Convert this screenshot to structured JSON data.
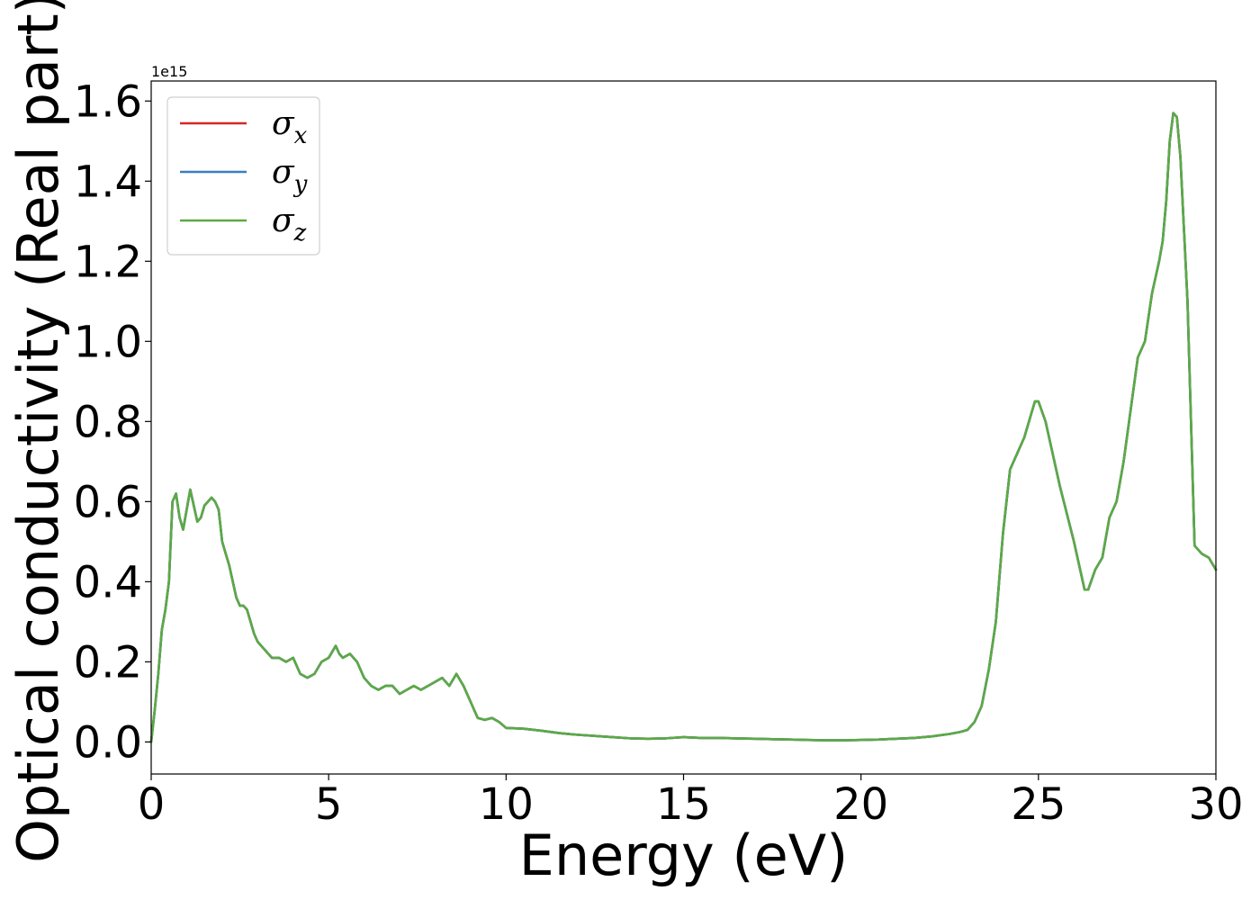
{
  "chart_data": {
    "type": "line",
    "title": "",
    "xlabel": "Energy (eV)",
    "ylabel": "Optical conductivity (Real part)",
    "y_offset_text": "1e15",
    "y_scale": 1000000000000000.0,
    "xlim": [
      0,
      30
    ],
    "ylim": [
      -0.08,
      1.65
    ],
    "xticks": [
      0,
      5,
      10,
      15,
      20,
      25,
      30
    ],
    "xtick_labels": [
      "0",
      "5",
      "10",
      "15",
      "20",
      "25",
      "30"
    ],
    "yticks": [
      0.0,
      0.2,
      0.4,
      0.6,
      0.8,
      1.0,
      1.2,
      1.4,
      1.6
    ],
    "ytick_labels": [
      "0.0",
      "0.2",
      "0.4",
      "0.6",
      "0.8",
      "1.0",
      "1.2",
      "1.4",
      "1.6"
    ],
    "grid": false,
    "legend": {
      "position": "top-left",
      "entries": [
        {
          "symbol": "σ",
          "sub": "x",
          "color": "#d62728"
        },
        {
          "symbol": "σ",
          "sub": "y",
          "color": "#3a7ebf"
        },
        {
          "symbol": "σ",
          "sub": "z",
          "color": "#5aaa46"
        }
      ]
    },
    "x": [
      0,
      0.1,
      0.2,
      0.3,
      0.4,
      0.5,
      0.6,
      0.7,
      0.8,
      0.9,
      1.0,
      1.1,
      1.2,
      1.3,
      1.4,
      1.5,
      1.6,
      1.7,
      1.8,
      1.9,
      2.0,
      2.1,
      2.2,
      2.3,
      2.4,
      2.5,
      2.6,
      2.7,
      2.8,
      2.9,
      3.0,
      3.2,
      3.4,
      3.6,
      3.8,
      4.0,
      4.2,
      4.4,
      4.6,
      4.8,
      5.0,
      5.2,
      5.3,
      5.4,
      5.6,
      5.8,
      6.0,
      6.2,
      6.4,
      6.6,
      6.8,
      7.0,
      7.2,
      7.4,
      7.6,
      7.8,
      8.0,
      8.2,
      8.4,
      8.6,
      8.8,
      9.0,
      9.2,
      9.4,
      9.6,
      9.8,
      10.0,
      10.5,
      11.0,
      11.5,
      12.0,
      12.5,
      13.0,
      13.5,
      14.0,
      14.5,
      15.0,
      15.5,
      16.0,
      16.5,
      17.0,
      17.5,
      18.0,
      18.5,
      19.0,
      19.5,
      20.0,
      20.5,
      21.0,
      21.5,
      22.0,
      22.5,
      22.8,
      23.0,
      23.2,
      23.4,
      23.6,
      23.8,
      24.0,
      24.2,
      24.4,
      24.6,
      24.8,
      24.9,
      25.0,
      25.2,
      25.4,
      25.6,
      25.8,
      26.0,
      26.2,
      26.3,
      26.4,
      26.6,
      26.8,
      27.0,
      27.2,
      27.4,
      27.6,
      27.8,
      28.0,
      28.2,
      28.4,
      28.5,
      28.6,
      28.7,
      28.8,
      28.9,
      29.0,
      29.2,
      29.4,
      29.6,
      29.8,
      30.0
    ],
    "series": [
      {
        "name": "σx",
        "color": "#d62728",
        "values": [
          0.0,
          0.08,
          0.17,
          0.28,
          0.33,
          0.4,
          0.6,
          0.62,
          0.56,
          0.53,
          0.58,
          0.63,
          0.59,
          0.55,
          0.56,
          0.59,
          0.6,
          0.61,
          0.6,
          0.58,
          0.5,
          0.47,
          0.44,
          0.4,
          0.36,
          0.34,
          0.34,
          0.33,
          0.3,
          0.27,
          0.25,
          0.23,
          0.21,
          0.21,
          0.2,
          0.21,
          0.17,
          0.16,
          0.17,
          0.2,
          0.21,
          0.24,
          0.22,
          0.21,
          0.22,
          0.2,
          0.16,
          0.14,
          0.13,
          0.14,
          0.14,
          0.12,
          0.13,
          0.14,
          0.13,
          0.14,
          0.15,
          0.16,
          0.14,
          0.17,
          0.14,
          0.1,
          0.06,
          0.055,
          0.06,
          0.05,
          0.035,
          0.033,
          0.028,
          0.022,
          0.018,
          0.015,
          0.012,
          0.009,
          0.008,
          0.009,
          0.012,
          0.01,
          0.01,
          0.009,
          0.008,
          0.007,
          0.006,
          0.005,
          0.004,
          0.004,
          0.005,
          0.006,
          0.008,
          0.01,
          0.014,
          0.02,
          0.025,
          0.03,
          0.05,
          0.09,
          0.18,
          0.3,
          0.52,
          0.68,
          0.72,
          0.76,
          0.82,
          0.85,
          0.85,
          0.8,
          0.72,
          0.64,
          0.57,
          0.5,
          0.42,
          0.38,
          0.38,
          0.43,
          0.46,
          0.56,
          0.6,
          0.7,
          0.83,
          0.96,
          1.0,
          1.12,
          1.2,
          1.25,
          1.35,
          1.5,
          1.57,
          1.56,
          1.46,
          1.1,
          0.49,
          0.47,
          0.46,
          0.43
        ]
      },
      {
        "name": "σy",
        "color": "#3a7ebf",
        "values": [
          0.0,
          0.08,
          0.17,
          0.28,
          0.33,
          0.4,
          0.6,
          0.62,
          0.56,
          0.53,
          0.58,
          0.63,
          0.59,
          0.55,
          0.56,
          0.59,
          0.6,
          0.61,
          0.6,
          0.58,
          0.5,
          0.47,
          0.44,
          0.4,
          0.36,
          0.34,
          0.34,
          0.33,
          0.3,
          0.27,
          0.25,
          0.23,
          0.21,
          0.21,
          0.2,
          0.21,
          0.17,
          0.16,
          0.17,
          0.2,
          0.21,
          0.24,
          0.22,
          0.21,
          0.22,
          0.2,
          0.16,
          0.14,
          0.13,
          0.14,
          0.14,
          0.12,
          0.13,
          0.14,
          0.13,
          0.14,
          0.15,
          0.16,
          0.14,
          0.17,
          0.14,
          0.1,
          0.06,
          0.055,
          0.06,
          0.05,
          0.035,
          0.033,
          0.028,
          0.022,
          0.018,
          0.015,
          0.012,
          0.009,
          0.008,
          0.009,
          0.012,
          0.01,
          0.01,
          0.009,
          0.008,
          0.007,
          0.006,
          0.005,
          0.004,
          0.004,
          0.005,
          0.006,
          0.008,
          0.01,
          0.014,
          0.02,
          0.025,
          0.03,
          0.05,
          0.09,
          0.18,
          0.3,
          0.52,
          0.68,
          0.72,
          0.76,
          0.82,
          0.85,
          0.85,
          0.8,
          0.72,
          0.64,
          0.57,
          0.5,
          0.42,
          0.38,
          0.38,
          0.43,
          0.46,
          0.56,
          0.6,
          0.7,
          0.83,
          0.96,
          1.0,
          1.12,
          1.2,
          1.25,
          1.35,
          1.5,
          1.57,
          1.56,
          1.46,
          1.1,
          0.49,
          0.47,
          0.46,
          0.43
        ]
      },
      {
        "name": "σz",
        "color": "#5aaa46",
        "values": [
          0.0,
          0.08,
          0.17,
          0.28,
          0.33,
          0.4,
          0.6,
          0.62,
          0.56,
          0.53,
          0.58,
          0.63,
          0.59,
          0.55,
          0.56,
          0.59,
          0.6,
          0.61,
          0.6,
          0.58,
          0.5,
          0.47,
          0.44,
          0.4,
          0.36,
          0.34,
          0.34,
          0.33,
          0.3,
          0.27,
          0.25,
          0.23,
          0.21,
          0.21,
          0.2,
          0.21,
          0.17,
          0.16,
          0.17,
          0.2,
          0.21,
          0.24,
          0.22,
          0.21,
          0.22,
          0.2,
          0.16,
          0.14,
          0.13,
          0.14,
          0.14,
          0.12,
          0.13,
          0.14,
          0.13,
          0.14,
          0.15,
          0.16,
          0.14,
          0.17,
          0.14,
          0.1,
          0.06,
          0.055,
          0.06,
          0.05,
          0.035,
          0.033,
          0.028,
          0.022,
          0.018,
          0.015,
          0.012,
          0.009,
          0.008,
          0.009,
          0.012,
          0.01,
          0.01,
          0.009,
          0.008,
          0.007,
          0.006,
          0.005,
          0.004,
          0.004,
          0.005,
          0.006,
          0.008,
          0.01,
          0.014,
          0.02,
          0.025,
          0.03,
          0.05,
          0.09,
          0.18,
          0.3,
          0.52,
          0.68,
          0.72,
          0.76,
          0.82,
          0.85,
          0.85,
          0.8,
          0.72,
          0.64,
          0.57,
          0.5,
          0.42,
          0.38,
          0.38,
          0.43,
          0.46,
          0.56,
          0.6,
          0.7,
          0.83,
          0.96,
          1.0,
          1.12,
          1.2,
          1.25,
          1.35,
          1.5,
          1.57,
          1.56,
          1.46,
          1.1,
          0.49,
          0.47,
          0.46,
          0.43
        ]
      }
    ]
  }
}
